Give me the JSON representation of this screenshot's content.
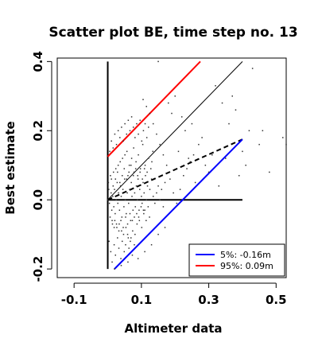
{
  "chart_data": {
    "type": "scatter",
    "title": "Scatter plot BE, time step no. 13",
    "xlabel": "Altimeter data",
    "ylabel": "Best estimate",
    "xlim": [
      -0.15,
      0.53
    ],
    "ylim": [
      -0.225,
      0.41
    ],
    "xticks": [
      -0.1,
      0.1,
      0.3,
      0.5
    ],
    "xtick_labels": [
      "-0.1",
      "0.1",
      "0.3",
      "0.5"
    ],
    "yticks": [
      -0.2,
      0.0,
      0.2,
      0.4
    ],
    "ytick_labels": [
      "-0.2",
      "0.0",
      "0.2",
      "0.4"
    ],
    "grid": false,
    "legend_position": "bottom-right",
    "legend": [
      {
        "label": "5%: -0.16m",
        "color": "#0000ff"
      },
      {
        "label": "95%:  0.09m",
        "color": "#ff0000"
      }
    ],
    "lines": [
      {
        "id": "v-axis-line",
        "style": "solid-thick",
        "color": "#000000",
        "x": [
          0.0,
          0.0
        ],
        "y": [
          -0.2,
          0.4
        ]
      },
      {
        "id": "h-zero-line",
        "style": "solid-thick",
        "color": "#000000",
        "x": [
          0.0,
          0.4
        ],
        "y": [
          0.0,
          0.0
        ]
      },
      {
        "id": "identity-line",
        "style": "solid-thin",
        "color": "#000000",
        "x": [
          0.0,
          0.4
        ],
        "y": [
          0.0,
          0.4
        ]
      },
      {
        "id": "regression-line",
        "style": "dashed",
        "color": "#000000",
        "x": [
          0.0,
          0.4
        ],
        "y": [
          0.0,
          0.175
        ]
      },
      {
        "id": "p95-line",
        "style": "solid",
        "color": "#ff0000",
        "x": [
          0.0,
          0.275
        ],
        "y": [
          0.125,
          0.4
        ]
      },
      {
        "id": "p5-line",
        "style": "solid",
        "color": "#0000ff",
        "x": [
          0.02,
          0.4
        ],
        "y": [
          -0.2,
          0.175
        ]
      }
    ],
    "points": [
      [
        0.0,
        0.0
      ],
      [
        0.005,
        -0.01
      ],
      [
        0.01,
        0.02
      ],
      [
        0.012,
        -0.03
      ],
      [
        0.015,
        0.01
      ],
      [
        0.018,
        -0.02
      ],
      [
        0.02,
        0.03
      ],
      [
        0.022,
        -0.04
      ],
      [
        0.025,
        0.0
      ],
      [
        0.028,
        0.05
      ],
      [
        0.03,
        -0.01
      ],
      [
        0.032,
        0.02
      ],
      [
        0.035,
        -0.03
      ],
      [
        0.038,
        0.04
      ],
      [
        0.04,
        0.01
      ],
      [
        0.042,
        -0.05
      ],
      [
        0.045,
        0.03
      ],
      [
        0.048,
        -0.02
      ],
      [
        0.05,
        0.06
      ],
      [
        0.052,
        0.0
      ],
      [
        0.055,
        -0.04
      ],
      [
        0.058,
        0.02
      ],
      [
        0.06,
        0.07
      ],
      [
        0.062,
        -0.01
      ],
      [
        0.065,
        0.03
      ],
      [
        0.068,
        -0.06
      ],
      [
        0.07,
        0.05
      ],
      [
        0.072,
        0.01
      ],
      [
        0.075,
        -0.03
      ],
      [
        0.078,
        0.08
      ],
      [
        0.08,
        0.02
      ],
      [
        0.082,
        -0.02
      ],
      [
        0.085,
        0.04
      ],
      [
        0.088,
        0.0
      ],
      [
        0.09,
        0.06
      ],
      [
        0.092,
        -0.05
      ],
      [
        0.095,
        0.03
      ],
      [
        0.1,
        0.01
      ],
      [
        0.102,
        -0.01
      ],
      [
        0.105,
        0.05
      ],
      [
        0.108,
        0.02
      ],
      [
        0.11,
        -0.03
      ],
      [
        0.112,
        0.07
      ],
      [
        0.115,
        0.0
      ],
      [
        0.118,
        0.04
      ],
      [
        0.12,
        -0.02
      ],
      [
        0.125,
        0.03
      ],
      [
        0.13,
        0.06
      ],
      [
        0.135,
        0.01
      ],
      [
        0.14,
        -0.01
      ],
      [
        0.145,
        0.02
      ],
      [
        0.15,
        0.04
      ],
      [
        0.155,
        0.0
      ],
      [
        0.16,
        0.03
      ],
      [
        0.165,
        -0.02
      ],
      [
        0.17,
        0.05
      ],
      [
        0.003,
        0.03
      ],
      [
        0.007,
        -0.05
      ],
      [
        0.011,
        0.06
      ],
      [
        0.014,
        -0.07
      ],
      [
        0.017,
        0.08
      ],
      [
        0.021,
        -0.06
      ],
      [
        0.024,
        0.09
      ],
      [
        0.027,
        -0.08
      ],
      [
        0.031,
        0.1
      ],
      [
        0.034,
        -0.07
      ],
      [
        0.037,
        0.11
      ],
      [
        0.041,
        -0.09
      ],
      [
        0.044,
        0.12
      ],
      [
        0.047,
        -0.1
      ],
      [
        0.051,
        0.13
      ],
      [
        0.054,
        -0.08
      ],
      [
        0.057,
        0.14
      ],
      [
        0.061,
        -0.11
      ],
      [
        0.064,
        0.1
      ],
      [
        0.067,
        -0.12
      ],
      [
        0.071,
        0.12
      ],
      [
        0.074,
        -0.09
      ],
      [
        0.077,
        0.15
      ],
      [
        0.081,
        -0.1
      ],
      [
        0.084,
        0.11
      ],
      [
        0.087,
        -0.07
      ],
      [
        0.091,
        0.13
      ],
      [
        0.094,
        -0.06
      ],
      [
        0.097,
        0.09
      ],
      [
        0.101,
        -0.08
      ],
      [
        0.104,
        0.16
      ],
      [
        0.107,
        -0.04
      ],
      [
        0.111,
        0.1
      ],
      [
        0.114,
        -0.06
      ],
      [
        0.117,
        0.08
      ],
      [
        0.121,
        0.12
      ],
      [
        0.124,
        -0.05
      ],
      [
        0.128,
        0.09
      ],
      [
        0.131,
        0.11
      ],
      [
        0.134,
        0.14
      ],
      [
        0.004,
        -0.12
      ],
      [
        0.009,
        -0.15
      ],
      [
        0.013,
        -0.18
      ],
      [
        0.019,
        -0.13
      ],
      [
        0.023,
        -0.16
      ],
      [
        0.029,
        -0.11
      ],
      [
        0.033,
        -0.14
      ],
      [
        0.039,
        -0.17
      ],
      [
        0.043,
        -0.12
      ],
      [
        0.049,
        -0.15
      ],
      [
        0.053,
        -0.13
      ],
      [
        0.059,
        -0.1
      ],
      [
        0.063,
        -0.14
      ],
      [
        0.069,
        -0.11
      ],
      [
        0.073,
        -0.16
      ],
      [
        0.079,
        -0.13
      ],
      [
        0.006,
        0.14
      ],
      [
        0.011,
        0.17
      ],
      [
        0.016,
        0.15
      ],
      [
        0.021,
        0.19
      ],
      [
        0.026,
        0.16
      ],
      [
        0.031,
        0.2
      ],
      [
        0.036,
        0.18
      ],
      [
        0.041,
        0.21
      ],
      [
        0.046,
        0.17
      ],
      [
        0.051,
        0.22
      ],
      [
        0.056,
        0.19
      ],
      [
        0.061,
        0.23
      ],
      [
        0.066,
        0.2
      ],
      [
        0.071,
        0.24
      ],
      [
        0.076,
        0.21
      ],
      [
        0.081,
        0.18
      ],
      [
        0.086,
        0.22
      ],
      [
        0.091,
        0.19
      ],
      [
        0.096,
        0.23
      ],
      [
        0.101,
        0.17
      ],
      [
        0.106,
        0.2
      ],
      [
        0.111,
        0.22
      ],
      [
        0.116,
        0.18
      ],
      [
        0.121,
        0.21
      ],
      [
        0.002,
        0.05
      ],
      [
        0.008,
        0.07
      ],
      [
        0.013,
        -0.06
      ],
      [
        0.016,
        0.04
      ],
      [
        0.019,
        -0.08
      ],
      [
        0.023,
        0.06
      ],
      [
        0.026,
        -0.07
      ],
      [
        0.029,
        0.08
      ],
      [
        0.033,
        -0.09
      ],
      [
        0.036,
        0.05
      ],
      [
        0.039,
        -0.06
      ],
      [
        0.043,
        0.07
      ],
      [
        0.046,
        -0.08
      ],
      [
        0.049,
        0.09
      ],
      [
        0.053,
        -0.05
      ],
      [
        0.056,
        0.06
      ],
      [
        0.059,
        -0.07
      ],
      [
        0.063,
        0.08
      ],
      [
        0.066,
        -0.04
      ],
      [
        0.069,
        0.1
      ],
      [
        0.073,
        -0.06
      ],
      [
        0.076,
        0.07
      ],
      [
        0.079,
        -0.05
      ],
      [
        0.083,
        0.09
      ],
      [
        0.086,
        -0.04
      ],
      [
        0.089,
        0.07
      ],
      [
        0.093,
        -0.03
      ],
      [
        0.096,
        0.08
      ],
      [
        0.099,
        -0.02
      ],
      [
        0.103,
        0.06
      ],
      [
        0.106,
        -0.03
      ],
      [
        0.109,
        0.09
      ],
      [
        0.02,
        -0.2
      ],
      [
        0.04,
        -0.19
      ],
      [
        0.06,
        -0.18
      ],
      [
        0.09,
        -0.17
      ],
      [
        0.11,
        -0.15
      ],
      [
        0.13,
        -0.13
      ],
      [
        0.15,
        -0.1
      ],
      [
        0.17,
        -0.08
      ],
      [
        0.18,
        0.28
      ],
      [
        0.2,
        0.3
      ],
      [
        0.22,
        0.24
      ],
      [
        0.24,
        0.12
      ],
      [
        0.26,
        0.05
      ],
      [
        0.28,
        0.18
      ],
      [
        0.3,
        0.08
      ],
      [
        0.32,
        0.33
      ],
      [
        0.34,
        0.28
      ],
      [
        0.36,
        0.22
      ],
      [
        0.38,
        0.26
      ],
      [
        0.4,
        0.14
      ],
      [
        0.33,
        0.04
      ],
      [
        0.31,
        0.13
      ],
      [
        0.27,
        0.16
      ],
      [
        0.23,
        0.2
      ],
      [
        0.19,
        0.25
      ],
      [
        0.21,
        0.14
      ],
      [
        0.25,
        0.22
      ],
      [
        0.29,
        0.1
      ],
      [
        0.35,
        0.12
      ],
      [
        0.37,
        0.3
      ],
      [
        0.39,
        0.07
      ],
      [
        0.42,
        0.2
      ],
      [
        0.45,
        0.16
      ],
      [
        0.46,
        0.2
      ],
      [
        0.52,
        0.18
      ],
      [
        0.53,
        0.16
      ],
      [
        0.15,
        0.4
      ],
      [
        0.43,
        0.38
      ],
      [
        0.48,
        0.08
      ],
      [
        0.41,
        0.1
      ],
      [
        0.185,
        0.06
      ],
      [
        0.195,
        0.02
      ],
      [
        0.205,
        -0.01
      ],
      [
        0.215,
        0.03
      ],
      [
        0.225,
        0.07
      ],
      [
        0.235,
        0.09
      ],
      [
        0.245,
        0.11
      ],
      [
        0.255,
        0.13
      ],
      [
        0.175,
        0.1
      ],
      [
        0.165,
        0.13
      ],
      [
        0.155,
        0.16
      ],
      [
        0.145,
        0.19
      ],
      [
        0.135,
        0.22
      ],
      [
        0.125,
        0.25
      ],
      [
        0.115,
        0.27
      ],
      [
        0.105,
        0.29
      ]
    ]
  }
}
